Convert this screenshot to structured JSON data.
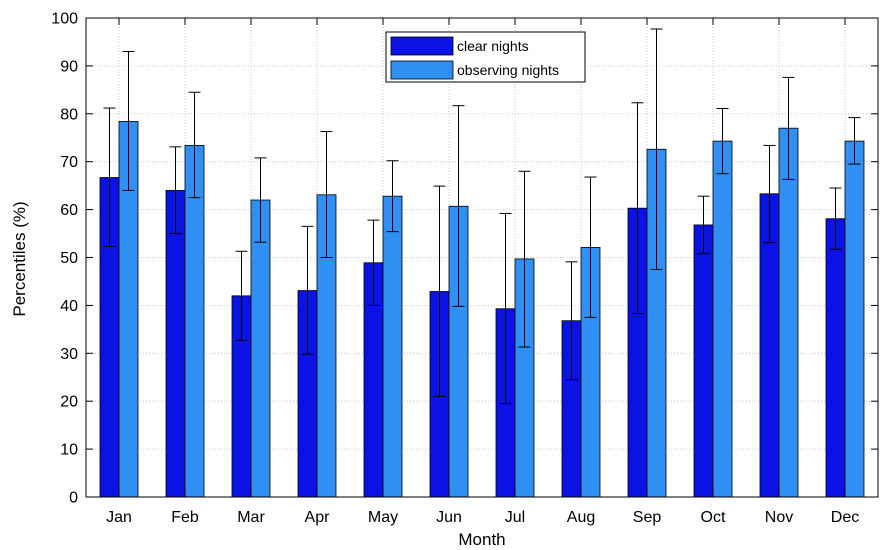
{
  "chart_data": {
    "type": "bar",
    "xlabel": "Month",
    "ylabel": "Percentiles (%)",
    "ylim": [
      0,
      100
    ],
    "yticks": [
      0,
      10,
      20,
      30,
      40,
      50,
      60,
      70,
      80,
      90,
      100
    ],
    "grid": true,
    "legend_position": "top-center",
    "categories": [
      "Jan",
      "Feb",
      "Mar",
      "Apr",
      "May",
      "Jun",
      "Jul",
      "Aug",
      "Sep",
      "Oct",
      "Nov",
      "Dec"
    ],
    "series": [
      {
        "name": "clear nights",
        "color": "#0a13e3",
        "values": [
          66.7,
          64.0,
          42.0,
          43.1,
          48.9,
          42.9,
          39.3,
          36.8,
          60.3,
          56.8,
          63.3,
          58.1
        ],
        "error_low": [
          52.3,
          55.0,
          32.7,
          29.8,
          40.0,
          21.0,
          19.5,
          24.5,
          38.3,
          50.8,
          53.1,
          51.7
        ],
        "error_high": [
          81.2,
          73.1,
          51.3,
          56.5,
          57.8,
          64.9,
          59.2,
          49.1,
          82.3,
          62.8,
          73.4,
          64.5
        ]
      },
      {
        "name": "observing nights",
        "color": "#2f8ff2",
        "values": [
          78.4,
          73.4,
          62.0,
          63.1,
          62.8,
          60.7,
          49.7,
          52.1,
          72.6,
          74.3,
          77.0,
          74.3
        ],
        "error_low": [
          64.0,
          62.5,
          53.2,
          50.0,
          55.4,
          39.8,
          31.3,
          37.5,
          47.5,
          67.5,
          66.3,
          69.5
        ],
        "error_high": [
          93.0,
          84.5,
          70.8,
          76.3,
          70.2,
          81.7,
          68.0,
          66.8,
          97.7,
          81.1,
          87.6,
          79.2
        ]
      }
    ]
  }
}
